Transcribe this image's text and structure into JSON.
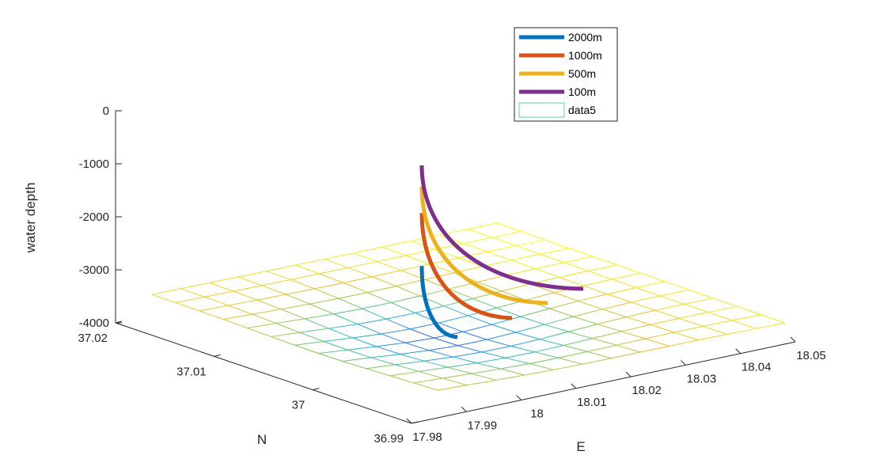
{
  "chart_data": {
    "type": "3d-line-surface",
    "title": "",
    "zlabel": "water depth",
    "xlabel": "E",
    "ylabel": "N",
    "z_ticks": [
      "0",
      "-1000",
      "-2000",
      "-3000",
      "-4000"
    ],
    "z_tick_values": [
      0,
      -1000,
      -2000,
      -3000,
      -4000
    ],
    "e_ticks": [
      "17.98",
      "17.99",
      "18",
      "18.01",
      "18.02",
      "18.03",
      "18.04",
      "18.05"
    ],
    "n_ticks": [
      "37.02",
      "37.01",
      "37",
      "36.99"
    ],
    "zlim": [
      -4000,
      0
    ],
    "series": [
      {
        "name": "2000m",
        "color": "#0072BD",
        "depth_start": -2900,
        "depth_end": -3900
      },
      {
        "name": "1000m",
        "color": "#D95319",
        "depth_start": -1900,
        "depth_end": -3900
      },
      {
        "name": "500m",
        "color": "#EDB120",
        "depth_start": -1400,
        "depth_end": -3700
      },
      {
        "name": "100m",
        "color": "#7E2F8E",
        "depth_start": -1000,
        "depth_end": -3600
      },
      {
        "name": "data5",
        "type": "surface",
        "colormap": "parula",
        "depth_approx": -4000
      }
    ],
    "legend_position": "top-right",
    "grid": false
  }
}
